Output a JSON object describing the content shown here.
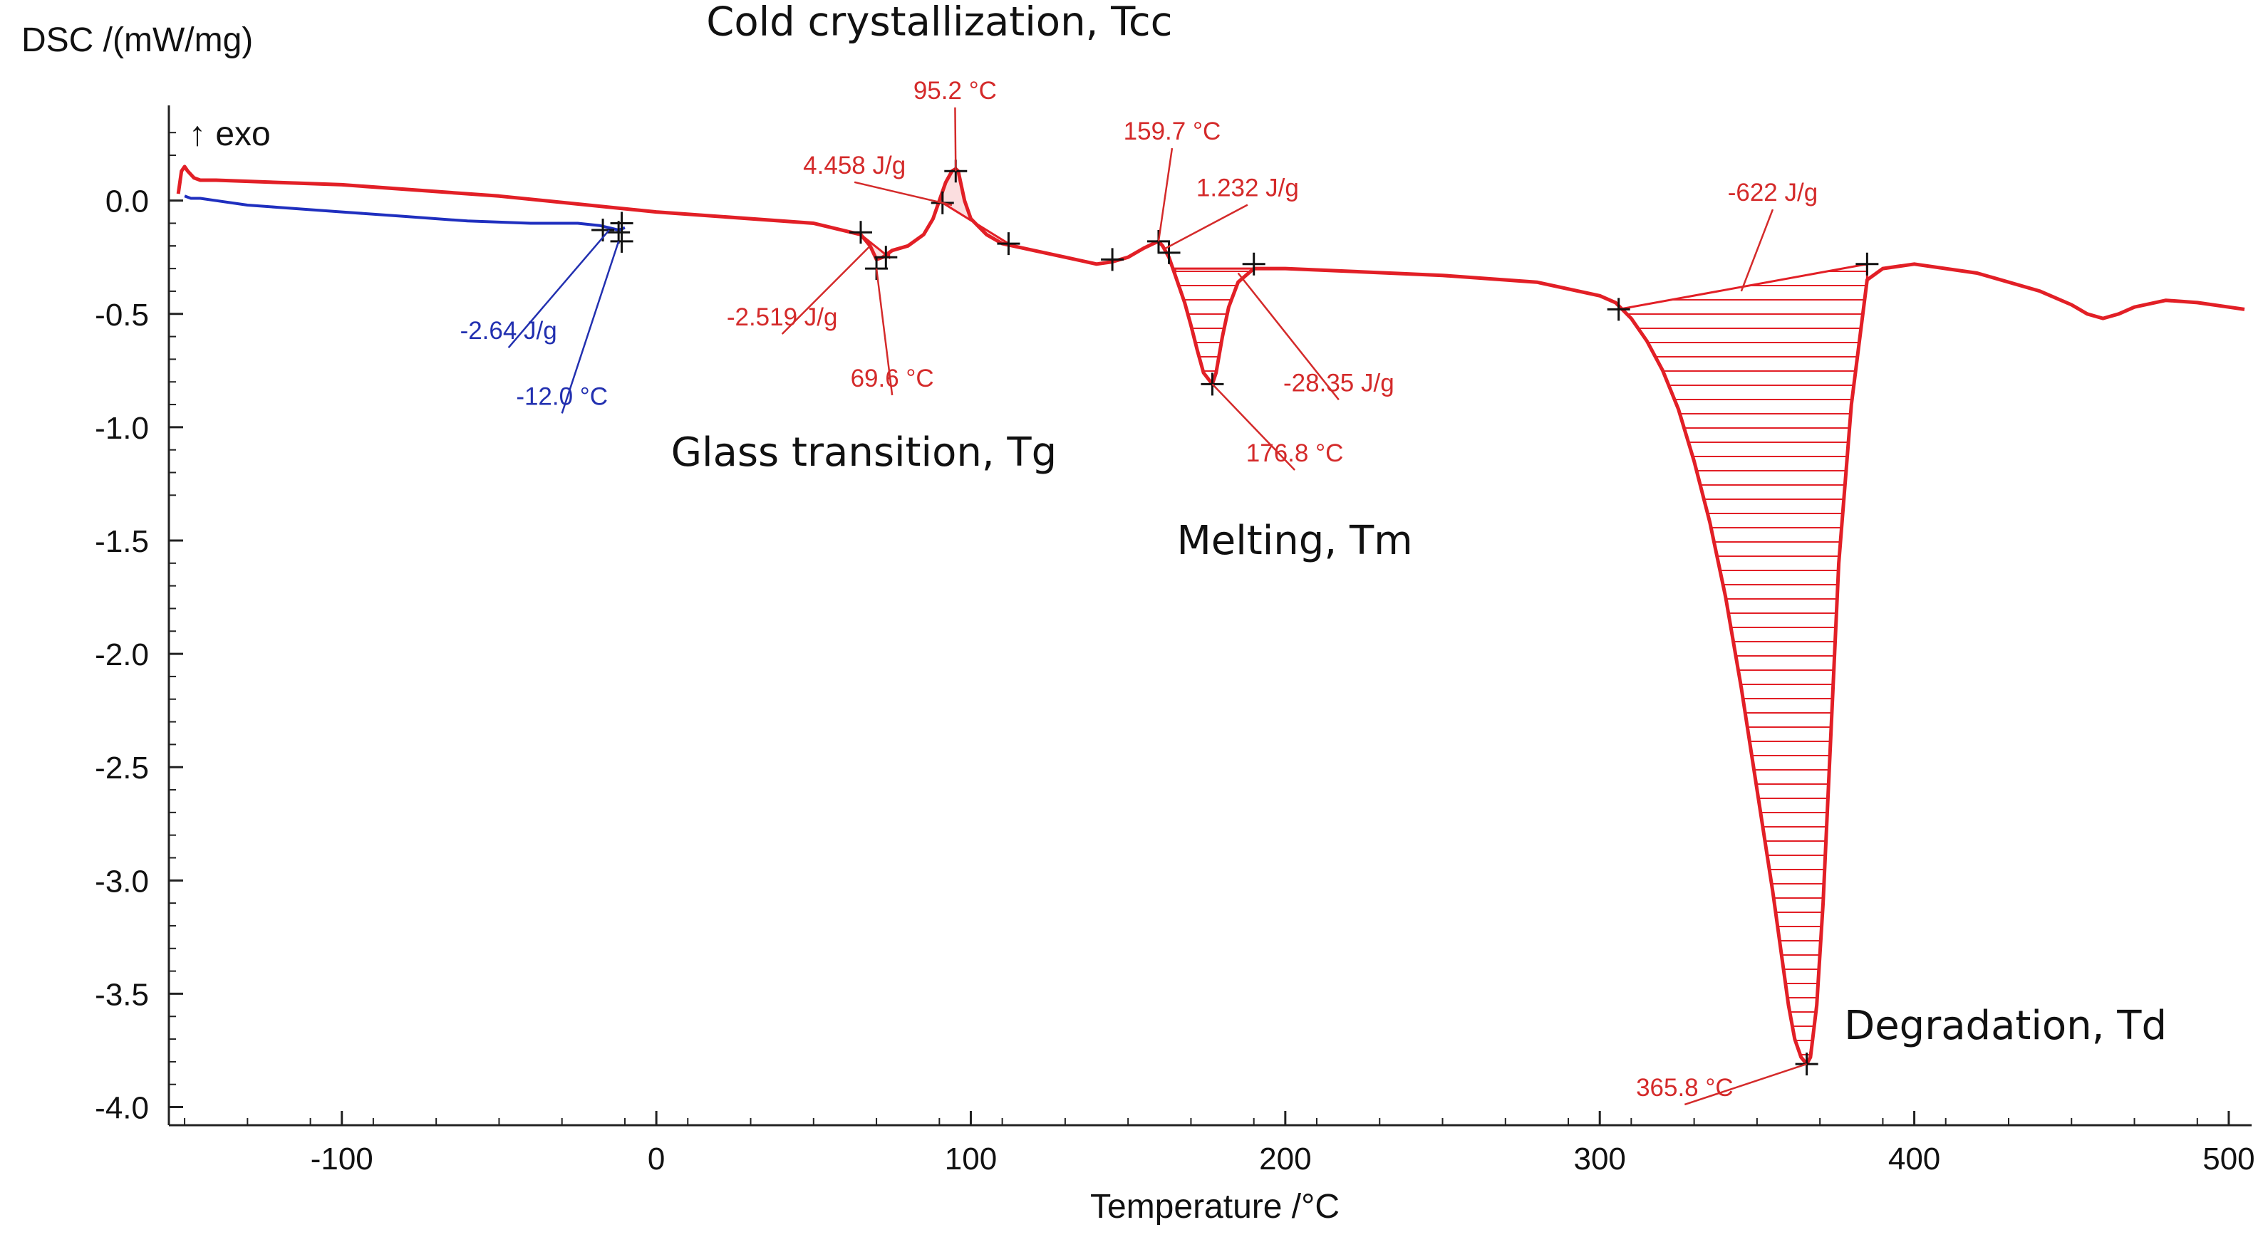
{
  "chart_data": {
    "type": "line",
    "ylabel": "DSC /(mW/mg)",
    "xlabel": "Temperature /°C",
    "exo_label": "↑ exo",
    "xlim": [
      -155,
      505
    ],
    "ylim": [
      -4.08,
      0.42
    ],
    "x_ticks": [
      -100,
      0,
      100,
      200,
      300,
      400,
      500
    ],
    "y_ticks": [
      0.0,
      -0.5,
      -1.0,
      -1.5,
      -2.0,
      -2.5,
      -3.0,
      -3.5,
      -4.0
    ],
    "y_tick_labels": [
      "0.0",
      "-0.5",
      "-1.0",
      "-1.5",
      "-2.0",
      "-2.5",
      "-3.0",
      "-3.5",
      "-4.0"
    ],
    "x_tick_labels": [
      "-100",
      "0",
      "100",
      "200",
      "300",
      "400",
      "500"
    ],
    "colors": {
      "heating": "#e21f26",
      "cooling": "#1f2fbf",
      "text": "#111111",
      "ann_red": "#d42a2a",
      "ann_blue": "#2230b0"
    },
    "series": [
      {
        "name": "cooling",
        "color": "#1f2fbf",
        "x": [
          -150,
          -148,
          -145,
          -140,
          -130,
          -120,
          -100,
          -80,
          -60,
          -40,
          -25,
          -18,
          -15,
          -12,
          -10
        ],
        "y": [
          0.02,
          0.01,
          0.01,
          0.0,
          -0.02,
          -0.03,
          -0.05,
          -0.07,
          -0.09,
          -0.1,
          -0.1,
          -0.11,
          -0.12,
          -0.13,
          -0.12
        ]
      },
      {
        "name": "heating",
        "color": "#e21f26",
        "x": [
          -152,
          -151,
          -150,
          -149,
          -147,
          -145,
          -140,
          -120,
          -100,
          -50,
          0,
          50,
          65,
          68,
          70,
          72,
          75,
          80,
          85,
          88,
          90,
          92,
          94,
          95.2,
          96,
          98,
          100,
          105,
          110,
          120,
          130,
          140,
          145,
          150,
          155,
          158,
          159.7,
          161,
          163,
          165,
          168,
          170,
          172,
          174,
          176.8,
          178,
          180,
          182,
          185,
          190,
          200,
          250,
          280,
          300,
          305,
          310,
          315,
          320,
          325,
          330,
          335,
          340,
          345,
          350,
          355,
          358,
          360,
          362,
          364,
          365.8,
          367,
          369,
          371,
          373,
          376,
          380,
          385,
          390,
          400,
          420,
          440,
          450,
          455,
          460,
          465,
          470,
          480,
          490,
          500,
          505
        ],
        "y": [
          0.03,
          0.13,
          0.15,
          0.13,
          0.1,
          0.09,
          0.09,
          0.08,
          0.07,
          0.02,
          -0.05,
          -0.1,
          -0.15,
          -0.2,
          -0.26,
          -0.25,
          -0.22,
          -0.2,
          -0.15,
          -0.08,
          0.0,
          0.08,
          0.13,
          0.14,
          0.13,
          0.0,
          -0.08,
          -0.15,
          -0.19,
          -0.22,
          -0.25,
          -0.28,
          -0.27,
          -0.25,
          -0.21,
          -0.19,
          -0.18,
          -0.2,
          -0.25,
          -0.33,
          -0.45,
          -0.55,
          -0.66,
          -0.76,
          -0.81,
          -0.76,
          -0.6,
          -0.47,
          -0.36,
          -0.3,
          -0.3,
          -0.33,
          -0.36,
          -0.42,
          -0.45,
          -0.52,
          -0.62,
          -0.75,
          -0.92,
          -1.15,
          -1.42,
          -1.75,
          -2.15,
          -2.6,
          -3.05,
          -3.35,
          -3.55,
          -3.7,
          -3.78,
          -3.81,
          -3.78,
          -3.55,
          -3.1,
          -2.5,
          -1.6,
          -0.9,
          -0.35,
          -0.3,
          -0.28,
          -0.32,
          -0.4,
          -0.46,
          -0.5,
          -0.52,
          -0.5,
          -0.47,
          -0.44,
          -0.45,
          -0.47,
          -0.48
        ]
      }
    ],
    "regions": [
      {
        "name": "glass-transition-area",
        "color": "#e21f26",
        "from": 65,
        "to": 74,
        "baseline": [
          [
            65,
            -0.15
          ],
          [
            74,
            -0.25
          ]
        ]
      },
      {
        "name": "cold-crystallization-area",
        "color": "#e21f26",
        "from": 91,
        "to": 112,
        "baseline": [
          [
            91,
            -0.01
          ],
          [
            112,
            -0.19
          ]
        ]
      },
      {
        "name": "melting-area",
        "color": "#e21f26",
        "from": 165,
        "to": 190,
        "baseline": [
          [
            165,
            -0.3
          ],
          [
            190,
            -0.3
          ]
        ],
        "hatched": true
      },
      {
        "name": "degradation-area",
        "color": "#e21f26",
        "from": 306,
        "to": 385,
        "baseline": [
          [
            306,
            -0.48
          ],
          [
            385,
            -0.28
          ]
        ],
        "hatched": true
      }
    ],
    "markers": [
      {
        "series": "cooling",
        "points": [
          [
            -17,
            -0.13
          ],
          [
            -12,
            -0.14
          ],
          [
            -11,
            -0.1
          ],
          [
            -11,
            -0.18
          ]
        ]
      },
      {
        "series": "heating",
        "points": [
          [
            65,
            -0.14
          ],
          [
            70,
            -0.3
          ],
          [
            73,
            -0.25
          ],
          [
            91,
            -0.01
          ],
          [
            95.2,
            0.13
          ],
          [
            112,
            -0.19
          ],
          [
            145,
            -0.26
          ],
          [
            159.7,
            -0.18
          ],
          [
            163,
            -0.23
          ],
          [
            176.8,
            -0.81
          ],
          [
            190,
            -0.28
          ],
          [
            306,
            -0.48
          ],
          [
            365.8,
            -3.81
          ],
          [
            385,
            -0.28
          ]
        ]
      }
    ],
    "annotations": [
      {
        "text": "95.2 °C",
        "color": "ann_red",
        "at": [
          95,
          0.43
        ],
        "anchor": [
          95.2,
          0.13
        ]
      },
      {
        "text": "4.458 J/g",
        "color": "ann_red",
        "at": [
          63,
          0.1
        ],
        "anchor": [
          94,
          -0.02
        ]
      },
      {
        "text": "-2.519 J/g",
        "color": "ann_red",
        "at": [
          40,
          -0.57
        ],
        "anchor": [
          68,
          -0.2
        ]
      },
      {
        "text": "69.6 °C",
        "color": "ann_red",
        "at": [
          75,
          -0.84
        ],
        "anchor": [
          70,
          -0.3
        ]
      },
      {
        "text": "159.7 °C",
        "color": "ann_red",
        "at": [
          164,
          0.25
        ],
        "anchor": [
          159.7,
          -0.18
        ]
      },
      {
        "text": "1.232 J/g",
        "color": "ann_red",
        "at": [
          188,
          0.0
        ],
        "anchor": [
          162,
          -0.21
        ]
      },
      {
        "text": "-28.35 J/g",
        "color": "ann_red",
        "at": [
          217,
          -0.86
        ],
        "anchor": [
          185,
          -0.32
        ]
      },
      {
        "text": "176.8 °C",
        "color": "ann_red",
        "at": [
          203,
          -1.17
        ],
        "anchor": [
          176.8,
          -0.81
        ]
      },
      {
        "text": "-622 J/g",
        "color": "ann_red",
        "at": [
          355,
          -0.02
        ],
        "anchor": [
          345,
          -0.4
        ]
      },
      {
        "text": "365.8 °C",
        "color": "ann_red",
        "at": [
          327,
          -3.97
        ],
        "anchor": [
          365.8,
          -3.81
        ]
      },
      {
        "text": "-2.64 J/g",
        "color": "ann_blue",
        "at": [
          -47,
          -0.63
        ],
        "anchor": [
          -15,
          -0.13
        ]
      },
      {
        "text": "-12.0 °C",
        "color": "ann_blue",
        "at": [
          -30,
          -0.92
        ],
        "anchor": [
          -12,
          -0.18
        ]
      }
    ],
    "region_labels": [
      {
        "text": "Cold crystallization, Tcc",
        "at": [
          90,
          0.73
        ]
      },
      {
        "text": "Glass transition, Tg",
        "at": [
          66,
          -1.17
        ]
      },
      {
        "text": "Melting, Tm",
        "at": [
          203,
          -1.56
        ]
      },
      {
        "text": "Degradation, Td",
        "at": [
          429,
          -3.7
        ]
      }
    ]
  }
}
